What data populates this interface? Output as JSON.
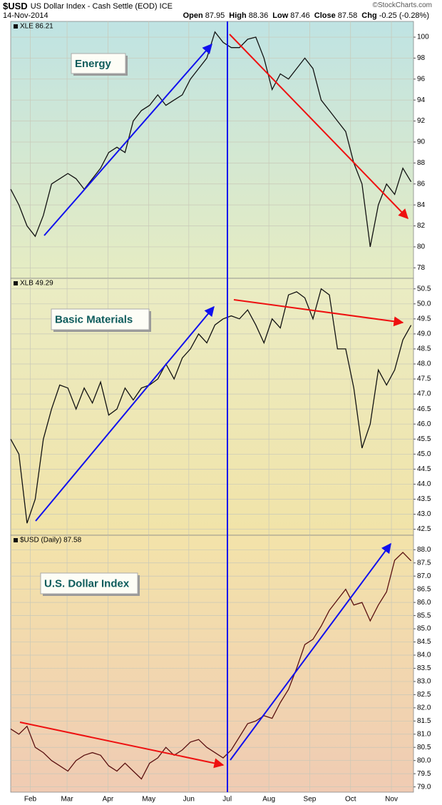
{
  "header": {
    "symbol": "$USD",
    "name": "US Dollar Index - Cash Settle (EOD) ICE",
    "date": "14-Nov-2014",
    "quote": [
      {
        "label": "Open",
        "value": "87.95"
      },
      {
        "label": "High",
        "value": "88.36"
      },
      {
        "label": "Low",
        "value": "87.46"
      },
      {
        "label": "Close",
        "value": "87.58"
      },
      {
        "label": "Chg",
        "value": "-0.25 (-0.28%)"
      }
    ],
    "copyright": "©StockCharts.com"
  },
  "chart_data": [
    {
      "type": "line",
      "label": "XLE 86.21",
      "annotation": "Energy",
      "color": "#111111",
      "values": [
        85.5,
        84,
        82,
        81,
        83,
        86,
        86.5,
        87,
        86.5,
        85.5,
        86.5,
        87.5,
        89,
        89.5,
        89,
        92,
        93,
        93.5,
        94.5,
        93.5,
        94,
        94.5,
        96,
        97,
        98,
        100.5,
        99.5,
        99,
        99,
        99.8,
        100,
        98,
        95,
        96.5,
        96,
        97,
        98,
        97,
        94,
        93,
        92,
        91,
        88,
        86,
        80,
        84,
        86,
        85,
        87.5,
        86.21
      ],
      "xlim": [
        0,
        49.3
      ],
      "ylim": [
        77,
        101.5
      ],
      "yticks": [
        78,
        80,
        82,
        84,
        86,
        88,
        90,
        92,
        94,
        96,
        98,
        100
      ],
      "grid": true
    },
    {
      "type": "line",
      "label": "XLB 49.29",
      "annotation": "Basic Materials",
      "color": "#111111",
      "values": [
        45.5,
        45,
        42.7,
        43.5,
        45.5,
        46.5,
        47.3,
        47.2,
        46.5,
        47.2,
        46.7,
        47.4,
        46.3,
        46.5,
        47.2,
        46.8,
        47.2,
        47.3,
        47.5,
        48,
        47.5,
        48.2,
        48.5,
        49,
        48.7,
        49.3,
        49.5,
        49.6,
        49.5,
        49.8,
        49.3,
        48.7,
        49.5,
        49.2,
        50.3,
        50.4,
        50.2,
        49.5,
        50.5,
        50.3,
        48.5,
        48.5,
        47.2,
        45.2,
        46,
        47.8,
        47.3,
        47.8,
        48.8,
        49.29
      ],
      "xlim": [
        0,
        49.3
      ],
      "ylim": [
        42.3,
        50.85
      ],
      "yticks": [
        42.5,
        {
          "value": 43,
          "label": "43.0"
        },
        43.5,
        {
          "value": 44,
          "label": "44.0"
        },
        44.5,
        {
          "value": 45,
          "label": "45.0"
        },
        45.5,
        {
          "value": 46,
          "label": "46.0"
        },
        46.5,
        {
          "value": 47,
          "label": "47.0"
        },
        47.5,
        {
          "value": 48,
          "label": "48.0"
        },
        48.5,
        {
          "value": 49,
          "label": "49.0"
        },
        49.5,
        {
          "value": 50,
          "label": "50.0"
        },
        50.5
      ],
      "grid": true
    },
    {
      "type": "line",
      "label": "$USD (Daily) 87.58",
      "annotation": "U.S. Dollar Index",
      "color": "#5a1010",
      "values": [
        81.2,
        81,
        81.3,
        80.5,
        80.3,
        80,
        79.8,
        79.6,
        80,
        80.2,
        80.3,
        80.2,
        79.8,
        79.6,
        79.9,
        79.6,
        79.3,
        79.9,
        80.1,
        80.5,
        80.2,
        80.4,
        80.7,
        80.8,
        80.5,
        80.3,
        80.1,
        80.4,
        80.9,
        81.4,
        81.5,
        81.7,
        81.6,
        82.2,
        82.7,
        83.5,
        84.4,
        84.6,
        85.1,
        85.7,
        86.1,
        86.5,
        85.9,
        86,
        85.3,
        85.9,
        86.4,
        87.6,
        87.9,
        87.58
      ],
      "xlim": [
        0,
        49.3
      ],
      "ylim": [
        78.8,
        88.55
      ],
      "yticks": [
        {
          "value": 79,
          "label": "79.0"
        },
        79.5,
        {
          "value": 80,
          "label": "80.0"
        },
        80.5,
        {
          "value": 81,
          "label": "81.0"
        },
        81.5,
        {
          "value": 82,
          "label": "82.0"
        },
        82.5,
        {
          "value": 83,
          "label": "83.0"
        },
        83.5,
        {
          "value": 84,
          "label": "84.0"
        },
        84.5,
        {
          "value": 85,
          "label": "85.0"
        },
        85.5,
        {
          "value": 86,
          "label": "86.0"
        },
        86.5,
        {
          "value": 87,
          "label": "87.0"
        },
        87.5,
        {
          "value": 88,
          "label": "88.0"
        }
      ],
      "xticks": [
        {
          "value": 2.4,
          "label": "Feb"
        },
        {
          "value": 6.9,
          "label": "Mar"
        },
        {
          "value": 11.9,
          "label": "Apr"
        },
        {
          "value": 16.9,
          "label": "May"
        },
        {
          "value": 21.8,
          "label": "Jun"
        },
        {
          "value": 26.5,
          "label": "Jul"
        },
        {
          "value": 31.6,
          "label": "Aug"
        },
        {
          "value": 36.6,
          "label": "Sep"
        },
        {
          "value": 41.6,
          "label": "Oct"
        },
        {
          "value": 46.6,
          "label": "Nov"
        }
      ],
      "grid": true
    }
  ]
}
